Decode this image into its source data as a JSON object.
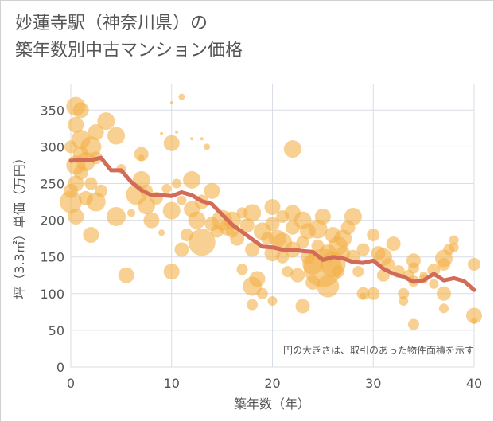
{
  "title_lines": [
    "妙蓮寺駅（神奈川県）の",
    "築年数別中古マンション価格"
  ],
  "chart_data": {
    "type": "scatter",
    "xlabel": "築年数（年）",
    "ylabel": "坪（3.3㎡）単価（万円）",
    "xlim": [
      0,
      40
    ],
    "ylim": [
      0,
      385
    ],
    "xticks": [
      0,
      10,
      20,
      30,
      40
    ],
    "yticks": [
      0,
      50,
      100,
      150,
      200,
      250,
      300,
      350
    ],
    "grid": true,
    "note": "円の大きさは、取引のあった物件面積を示す",
    "colors": {
      "bubble": "#f3b048",
      "line": "#d26b57",
      "grid": "#d8dde6",
      "plot_bg": "#ffffff"
    },
    "scatter": [
      {
        "x": 0,
        "y": 225,
        "s": 14
      },
      {
        "x": 0,
        "y": 240,
        "s": 9
      },
      {
        "x": 0,
        "y": 300,
        "s": 8
      },
      {
        "x": 0.5,
        "y": 355,
        "s": 12
      },
      {
        "x": 0.5,
        "y": 330,
        "s": 10
      },
      {
        "x": 0.5,
        "y": 275,
        "s": 12
      },
      {
        "x": 0.5,
        "y": 250,
        "s": 10
      },
      {
        "x": 0.5,
        "y": 205,
        "s": 10
      },
      {
        "x": 1,
        "y": 350,
        "s": 10
      },
      {
        "x": 1,
        "y": 310,
        "s": 12
      },
      {
        "x": 1,
        "y": 290,
        "s": 10
      },
      {
        "x": 1,
        "y": 265,
        "s": 9
      },
      {
        "x": 1.5,
        "y": 280,
        "s": 12
      },
      {
        "x": 1.5,
        "y": 230,
        "s": 9
      },
      {
        "x": 2,
        "y": 300,
        "s": 13
      },
      {
        "x": 2,
        "y": 250,
        "s": 8
      },
      {
        "x": 2,
        "y": 180,
        "s": 10
      },
      {
        "x": 2.5,
        "y": 285,
        "s": 8
      },
      {
        "x": 2.5,
        "y": 225,
        "s": 12
      },
      {
        "x": 2.5,
        "y": 320,
        "s": 10
      },
      {
        "x": 3,
        "y": 240,
        "s": 8
      },
      {
        "x": 3.5,
        "y": 335,
        "s": 11
      },
      {
        "x": 4.5,
        "y": 315,
        "s": 11
      },
      {
        "x": 4.5,
        "y": 205,
        "s": 12
      },
      {
        "x": 5,
        "y": 270,
        "s": 6
      },
      {
        "x": 5.5,
        "y": 125,
        "s": 10
      },
      {
        "x": 6,
        "y": 210,
        "s": 5
      },
      {
        "x": 6.5,
        "y": 235,
        "s": 13
      },
      {
        "x": 7,
        "y": 255,
        "s": 11
      },
      {
        "x": 7,
        "y": 290,
        "s": 9
      },
      {
        "x": 7,
        "y": 285,
        "s": 4
      },
      {
        "x": 7.5,
        "y": 220,
        "s": 11
      },
      {
        "x": 7.5,
        "y": 240,
        "s": 8
      },
      {
        "x": 8,
        "y": 200,
        "s": 10
      },
      {
        "x": 8.5,
        "y": 230,
        "s": 8
      },
      {
        "x": 9,
        "y": 183,
        "s": 4
      },
      {
        "x": 9,
        "y": 318,
        "s": 2
      },
      {
        "x": 9.5,
        "y": 243,
        "s": 6
      },
      {
        "x": 10,
        "y": 305,
        "s": 10
      },
      {
        "x": 10,
        "y": 213,
        "s": 11
      },
      {
        "x": 10,
        "y": 130,
        "s": 10
      },
      {
        "x": 10,
        "y": 360,
        "s": 2
      },
      {
        "x": 10.5,
        "y": 250,
        "s": 6
      },
      {
        "x": 10.5,
        "y": 320,
        "s": 2
      },
      {
        "x": 11,
        "y": 368,
        "s": 4
      },
      {
        "x": 11,
        "y": 160,
        "s": 9
      },
      {
        "x": 11,
        "y": 227,
        "s": 6
      },
      {
        "x": 11.5,
        "y": 180,
        "s": 8
      },
      {
        "x": 12,
        "y": 255,
        "s": 11
      },
      {
        "x": 12,
        "y": 215,
        "s": 10
      },
      {
        "x": 12,
        "y": 311,
        "s": 2
      },
      {
        "x": 12.5,
        "y": 200,
        "s": 11
      },
      {
        "x": 13,
        "y": 170,
        "s": 17
      },
      {
        "x": 13,
        "y": 225,
        "s": 9
      },
      {
        "x": 13,
        "y": 311,
        "s": 2
      },
      {
        "x": 13.5,
        "y": 300,
        "s": 4
      },
      {
        "x": 14,
        "y": 240,
        "s": 10
      },
      {
        "x": 14,
        "y": 195,
        "s": 9
      },
      {
        "x": 14.5,
        "y": 185,
        "s": 8
      },
      {
        "x": 15,
        "y": 200,
        "s": 13
      },
      {
        "x": 15.5,
        "y": 190,
        "s": 10
      },
      {
        "x": 16,
        "y": 200,
        "s": 11
      },
      {
        "x": 16,
        "y": 185,
        "s": 8
      },
      {
        "x": 16.5,
        "y": 175,
        "s": 9
      },
      {
        "x": 17,
        "y": 210,
        "s": 7
      },
      {
        "x": 17,
        "y": 133,
        "s": 7
      },
      {
        "x": 17.5,
        "y": 193,
        "s": 9
      },
      {
        "x": 18,
        "y": 210,
        "s": 11
      },
      {
        "x": 18,
        "y": 160,
        "s": 9
      },
      {
        "x": 18,
        "y": 110,
        "s": 12
      },
      {
        "x": 18,
        "y": 85,
        "s": 7
      },
      {
        "x": 18.5,
        "y": 120,
        "s": 10
      },
      {
        "x": 19,
        "y": 185,
        "s": 11
      },
      {
        "x": 19,
        "y": 100,
        "s": 7
      },
      {
        "x": 19.5,
        "y": 175,
        "s": 8
      },
      {
        "x": 20,
        "y": 218,
        "s": 10
      },
      {
        "x": 20,
        "y": 195,
        "s": 9
      },
      {
        "x": 20,
        "y": 155,
        "s": 10
      },
      {
        "x": 20,
        "y": 90,
        "s": 6
      },
      {
        "x": 20.5,
        "y": 175,
        "s": 11
      },
      {
        "x": 21,
        "y": 205,
        "s": 8
      },
      {
        "x": 21,
        "y": 170,
        "s": 12
      },
      {
        "x": 21,
        "y": 150,
        "s": 8
      },
      {
        "x": 21.5,
        "y": 130,
        "s": 7
      },
      {
        "x": 22,
        "y": 297,
        "s": 11
      },
      {
        "x": 22,
        "y": 210,
        "s": 10
      },
      {
        "x": 22,
        "y": 190,
        "s": 9
      },
      {
        "x": 22,
        "y": 160,
        "s": 10
      },
      {
        "x": 22.5,
        "y": 125,
        "s": 9
      },
      {
        "x": 23,
        "y": 83,
        "s": 9
      },
      {
        "x": 23,
        "y": 200,
        "s": 11
      },
      {
        "x": 23,
        "y": 170,
        "s": 8
      },
      {
        "x": 23.5,
        "y": 185,
        "s": 10
      },
      {
        "x": 23.5,
        "y": 150,
        "s": 9
      },
      {
        "x": 24,
        "y": 140,
        "s": 13
      },
      {
        "x": 24,
        "y": 115,
        "s": 9
      },
      {
        "x": 24.5,
        "y": 188,
        "s": 12
      },
      {
        "x": 24.5,
        "y": 165,
        "s": 8
      },
      {
        "x": 25,
        "y": 135,
        "s": 24
      },
      {
        "x": 25,
        "y": 205,
        "s": 10
      },
      {
        "x": 25.5,
        "y": 110,
        "s": 14
      },
      {
        "x": 25.5,
        "y": 155,
        "s": 11
      },
      {
        "x": 26,
        "y": 180,
        "s": 10
      },
      {
        "x": 26,
        "y": 140,
        "s": 16
      },
      {
        "x": 26.5,
        "y": 130,
        "s": 8
      },
      {
        "x": 26.5,
        "y": 165,
        "s": 12
      },
      {
        "x": 27,
        "y": 175,
        "s": 11
      },
      {
        "x": 27,
        "y": 155,
        "s": 9
      },
      {
        "x": 27.5,
        "y": 190,
        "s": 9
      },
      {
        "x": 28,
        "y": 205,
        "s": 11
      },
      {
        "x": 28,
        "y": 150,
        "s": 9
      },
      {
        "x": 28.5,
        "y": 130,
        "s": 7
      },
      {
        "x": 29,
        "y": 100,
        "s": 8
      },
      {
        "x": 29,
        "y": 97,
        "s": 4
      },
      {
        "x": 29,
        "y": 160,
        "s": 8
      },
      {
        "x": 30,
        "y": 180,
        "s": 8
      },
      {
        "x": 30,
        "y": 100,
        "s": 8
      },
      {
        "x": 30.5,
        "y": 155,
        "s": 9
      },
      {
        "x": 31,
        "y": 150,
        "s": 11
      },
      {
        "x": 31,
        "y": 125,
        "s": 8
      },
      {
        "x": 31.5,
        "y": 140,
        "s": 8
      },
      {
        "x": 32,
        "y": 168,
        "s": 9
      },
      {
        "x": 32.5,
        "y": 130,
        "s": 8
      },
      {
        "x": 33,
        "y": 90,
        "s": 6
      },
      {
        "x": 33,
        "y": 100,
        "s": 7
      },
      {
        "x": 33.5,
        "y": 125,
        "s": 7
      },
      {
        "x": 34,
        "y": 145,
        "s": 9
      },
      {
        "x": 34,
        "y": 135,
        "s": 7
      },
      {
        "x": 34,
        "y": 117,
        "s": 7
      },
      {
        "x": 34,
        "y": 58,
        "s": 7
      },
      {
        "x": 35,
        "y": 120,
        "s": 6
      },
      {
        "x": 35,
        "y": 125,
        "s": 5
      },
      {
        "x": 36,
        "y": 132,
        "s": 8
      },
      {
        "x": 36,
        "y": 113,
        "s": 6
      },
      {
        "x": 37,
        "y": 148,
        "s": 11
      },
      {
        "x": 37,
        "y": 140,
        "s": 8
      },
      {
        "x": 37,
        "y": 100,
        "s": 9
      },
      {
        "x": 37,
        "y": 80,
        "s": 6
      },
      {
        "x": 37.5,
        "y": 160,
        "s": 7
      },
      {
        "x": 38,
        "y": 173,
        "s": 6
      },
      {
        "x": 38,
        "y": 163,
        "s": 6
      },
      {
        "x": 40,
        "y": 140,
        "s": 8
      },
      {
        "x": 40,
        "y": 70,
        "s": 10
      },
      {
        "x": 40,
        "y": 63,
        "s": 4
      }
    ],
    "trend": {
      "name": "",
      "x": [
        0,
        1,
        2,
        3,
        4,
        5,
        6,
        7,
        8,
        9,
        10,
        11,
        12,
        13,
        14,
        15,
        16,
        17,
        18,
        19,
        20,
        21,
        22,
        23,
        24,
        25,
        26,
        27,
        28,
        29,
        30,
        31,
        32,
        33,
        34,
        35,
        36,
        37,
        38,
        39,
        40
      ],
      "y": [
        281,
        282,
        282,
        285,
        268,
        268,
        252,
        241,
        234,
        234,
        233,
        238,
        234,
        226,
        222,
        208,
        194,
        184,
        174,
        164,
        163,
        160,
        160,
        158,
        157,
        146,
        150,
        148,
        143,
        142,
        145,
        134,
        127,
        123,
        116,
        118,
        127,
        118,
        121,
        117,
        105
      ]
    }
  }
}
